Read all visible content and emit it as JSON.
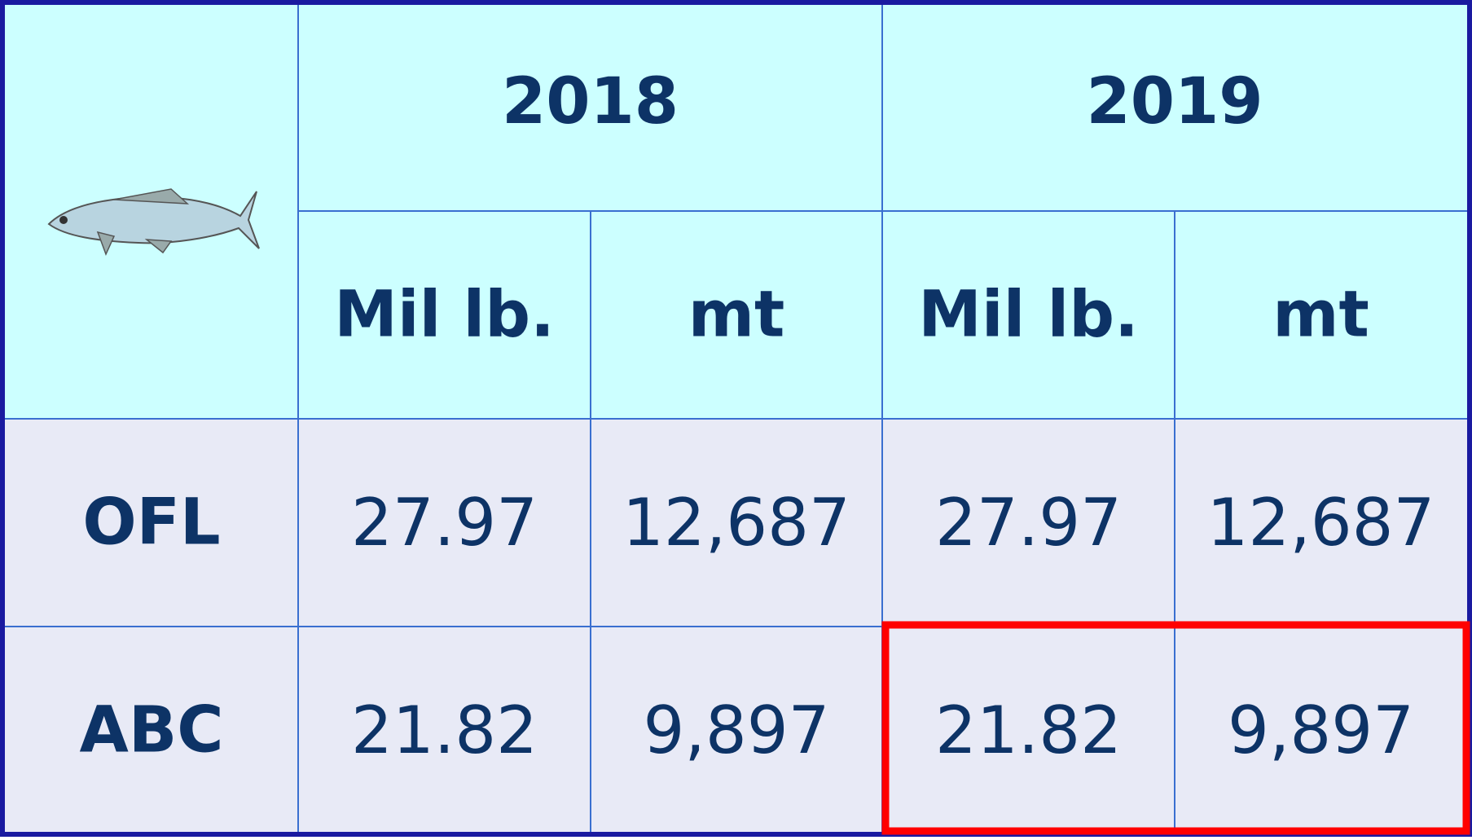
{
  "table": {
    "years": [
      "2018",
      "2019"
    ],
    "units": [
      "Mil lb.",
      "mt",
      "Mil lb.",
      "mt"
    ],
    "rows": [
      {
        "label": "OFL",
        "values": [
          "27.97",
          "12,687",
          "27.97",
          "12,687"
        ]
      },
      {
        "label": "ABC",
        "values": [
          "21.82",
          "9,897",
          "21.82",
          "9,897"
        ]
      }
    ]
  }
}
